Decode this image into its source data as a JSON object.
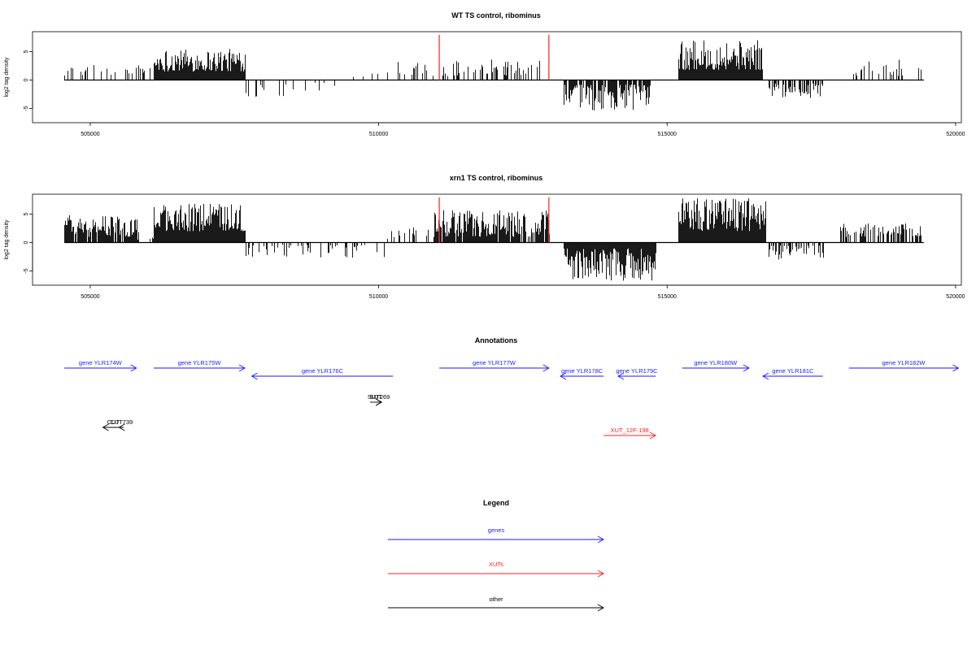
{
  "colors": {
    "gene": "#1a1aff",
    "xut": "#ff2020",
    "other": "#000000",
    "marker": "#ff3030"
  },
  "annotations_title": "Annotations",
  "legend": {
    "title": "Legend",
    "items": [
      {
        "label": "genes",
        "color": "#1a1aff"
      },
      {
        "label": "XUTs",
        "color": "#ff2020"
      },
      {
        "label": "other",
        "color": "#000000"
      }
    ]
  },
  "chart_data": [
    {
      "type": "bar",
      "title": "WT TS control, ribominus",
      "ylabel": "log2 tag density",
      "xlim": [
        504000,
        520100
      ],
      "ylim": [
        -7.5,
        8.5
      ],
      "xticks": [
        505000,
        510000,
        515000,
        520000
      ],
      "yticks": [
        -5,
        0,
        5
      ],
      "baseline": [
        504550,
        519450
      ],
      "red_markers": [
        511050,
        512950
      ],
      "regions": [
        {
          "from": 504550,
          "to": 506100,
          "sign": 1,
          "min": 0.8,
          "max": 2.8,
          "density": 0.3
        },
        {
          "from": 506100,
          "to": 507680,
          "sign": 1,
          "min": 1.5,
          "max": 5.5,
          "density": 1
        },
        {
          "from": 507680,
          "to": 509300,
          "sign": -1,
          "min": 0.4,
          "max": 3.0,
          "density": 0.12
        },
        {
          "from": 509400,
          "to": 510200,
          "sign": 1,
          "min": 0.5,
          "max": 1.5,
          "density": 0.06
        },
        {
          "from": 510300,
          "to": 511000,
          "sign": 1,
          "min": 0.6,
          "max": 3.5,
          "density": 0.3
        },
        {
          "from": 511000,
          "to": 512950,
          "sign": 1,
          "min": 0.6,
          "max": 3.6,
          "density": 0.35
        },
        {
          "from": 513200,
          "to": 514700,
          "sign": -1,
          "min": 0.8,
          "max": 5.5,
          "density": 0.8
        },
        {
          "from": 515200,
          "to": 516650,
          "sign": 1,
          "min": 1.8,
          "max": 7.0,
          "density": 1
        },
        {
          "from": 516700,
          "to": 517700,
          "sign": -1,
          "min": 0.6,
          "max": 3.5,
          "density": 0.6
        },
        {
          "from": 518200,
          "to": 519400,
          "sign": 1,
          "min": 0.6,
          "max": 3.6,
          "density": 0.18
        }
      ]
    },
    {
      "type": "bar",
      "title": "xrn1 TS control, ribominus",
      "ylabel": "log2 tag density",
      "xlim": [
        504000,
        520100
      ],
      "ylim": [
        -7.5,
        8.5
      ],
      "xticks": [
        505000,
        510000,
        515000,
        520000
      ],
      "yticks": [
        -5,
        0,
        5
      ],
      "baseline": [
        504550,
        519450
      ],
      "red_markers": [
        511050,
        512950
      ],
      "regions": [
        {
          "from": 504550,
          "to": 505800,
          "sign": 1,
          "min": 1.0,
          "max": 4.8,
          "density": 0.9
        },
        {
          "from": 505800,
          "to": 506100,
          "sign": 1,
          "min": 0.5,
          "max": 2.5,
          "density": 0.3
        },
        {
          "from": 506100,
          "to": 507680,
          "sign": 1,
          "min": 2.0,
          "max": 6.8,
          "density": 1
        },
        {
          "from": 507680,
          "to": 510100,
          "sign": -1,
          "min": 0.4,
          "max": 2.8,
          "density": 0.25
        },
        {
          "from": 510100,
          "to": 510900,
          "sign": 1,
          "min": 0.5,
          "max": 3.0,
          "density": 0.3
        },
        {
          "from": 510950,
          "to": 512950,
          "sign": 1,
          "min": 1.0,
          "max": 5.8,
          "density": 0.9
        },
        {
          "from": 513200,
          "to": 514800,
          "sign": -1,
          "min": 1.0,
          "max": 6.8,
          "density": 1
        },
        {
          "from": 515200,
          "to": 516700,
          "sign": 1,
          "min": 2.0,
          "max": 7.8,
          "density": 1
        },
        {
          "from": 516750,
          "to": 517700,
          "sign": -1,
          "min": 0.5,
          "max": 3.0,
          "density": 0.5
        },
        {
          "from": 518000,
          "to": 519400,
          "sign": 1,
          "min": 1.0,
          "max": 3.5,
          "density": 0.65
        }
      ]
    }
  ],
  "features": [
    {
      "label": "gene YLR174W",
      "class": "gene",
      "start": 504550,
      "end": 505800,
      "strand": "+",
      "row": 0
    },
    {
      "label": "gene YLR175W",
      "class": "gene",
      "start": 506100,
      "end": 507680,
      "strand": "+",
      "row": 0
    },
    {
      "label": "gene YLR176C",
      "class": "gene",
      "start": 507800,
      "end": 510250,
      "strand": "-",
      "row": 1
    },
    {
      "label": "gene YLR177W",
      "class": "gene",
      "start": 511050,
      "end": 512950,
      "strand": "+",
      "row": 0
    },
    {
      "label": "gene YLR178C",
      "class": "gene",
      "start": 513150,
      "end": 513900,
      "strand": "-",
      "row": 1
    },
    {
      "label": "gene YLR179C",
      "class": "gene",
      "start": 514150,
      "end": 514800,
      "strand": "-",
      "row": 1
    },
    {
      "label": "gene YLR180W",
      "class": "gene",
      "start": 515260,
      "end": 516420,
      "strand": "+",
      "row": 0
    },
    {
      "label": "gene YLR181C",
      "class": "gene",
      "start": 516660,
      "end": 517700,
      "strand": "-",
      "row": 1
    },
    {
      "label": "gene YLR182W",
      "class": "gene",
      "start": 518150,
      "end": 520050,
      "strand": "+",
      "row": 0
    },
    {
      "label": "SUT",
      "class": "other",
      "start": 509850,
      "end": 510050,
      "strand": "+",
      "row": 2
    },
    {
      "label": "SUT269",
      "class": "other",
      "start": 509950,
      "end": 510050,
      "strand": "+",
      "row": 2
    },
    {
      "label": "CUT",
      "class": "other",
      "start": 505220,
      "end": 505580,
      "strand": "-",
      "row": 3
    },
    {
      "label": "CUT739",
      "class": "other",
      "start": 505500,
      "end": 505580,
      "strand": "-",
      "row": 3
    },
    {
      "label": "XUT_12F-198",
      "class": "xut",
      "start": 513900,
      "end": 514800,
      "strand": "+",
      "row": 4
    }
  ]
}
